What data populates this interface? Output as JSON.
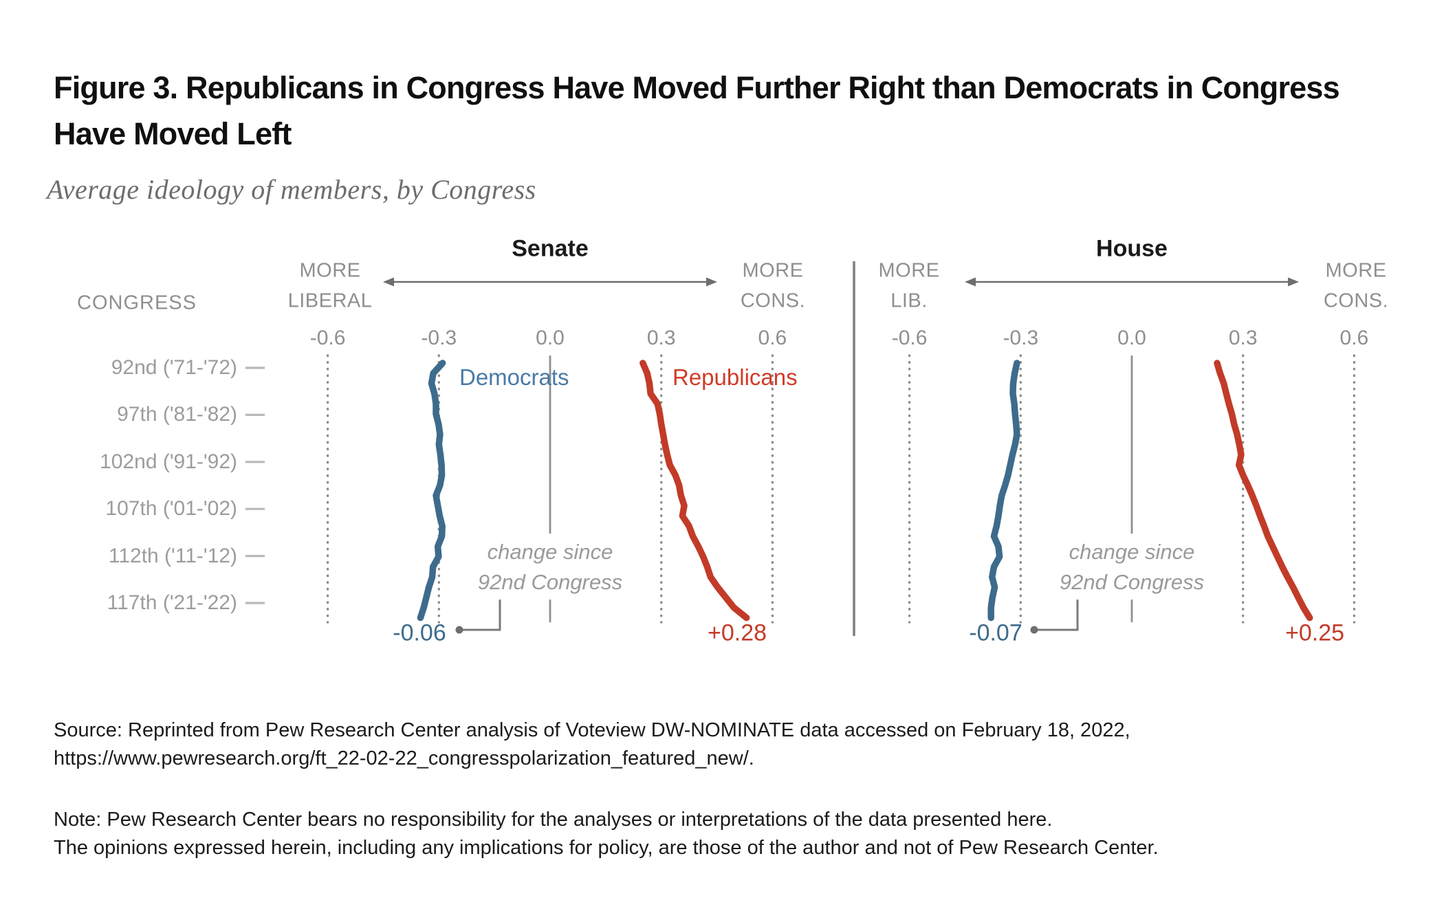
{
  "figure": {
    "title": "Figure 3. Republicans in Congress Have Moved Further Right than Democrats in Congress Have Moved Left",
    "subtitle": "Average ideology of members, by Congress"
  },
  "chart_data": {
    "type": "line",
    "description": "Average DW-NOMINATE ideology score of members by Congress, plotted vertically from the 92nd Congress (1971-72) at top to the 117th Congress (2021-22) at bottom; negative values = more liberal, positive = more conservative",
    "congress_range": [
      92,
      117
    ],
    "points_per_series": 26,
    "row_axis": {
      "header": "CONGRESS",
      "row_labels": [
        "92nd ('71-'72)",
        "97th ('81-'82)",
        "102nd ('91-'92)",
        "107th ('01-'02)",
        "112th ('11-'12)",
        "117th ('21-'22)"
      ]
    },
    "value_axis": {
      "tick_labels": [
        "-0.6",
        "-0.3",
        "0.0",
        "0.3",
        "0.6"
      ],
      "tick_values": [
        -0.6,
        -0.3,
        0,
        0.3,
        0.6
      ],
      "grid": "dotted vertical lines at ticks, solid line at 0.0"
    },
    "panels": [
      {
        "id": "senate",
        "title": "Senate",
        "left_endpoint_label": [
          "MORE",
          "LIBERAL"
        ],
        "right_endpoint_label": [
          "MORE",
          "CONS."
        ],
        "series": [
          {
            "name": "Democrats",
            "color": "#3e6b8c",
            "label_color": "#4a7aa5",
            "values": [
              -0.29,
              -0.315,
              -0.32,
              -0.312,
              -0.308,
              -0.308,
              -0.301,
              -0.297,
              -0.3,
              -0.296,
              -0.293,
              -0.292,
              -0.297,
              -0.308,
              -0.303,
              -0.298,
              -0.291,
              -0.292,
              -0.303,
              -0.301,
              -0.316,
              -0.318,
              -0.327,
              -0.334,
              -0.341,
              -0.35
            ]
          },
          {
            "name": "Republicans",
            "color": "#c23b28",
            "label_color": "#d03c27",
            "values": [
              0.25,
              0.262,
              0.268,
              0.271,
              0.29,
              0.296,
              0.3,
              0.305,
              0.31,
              0.316,
              0.323,
              0.338,
              0.348,
              0.353,
              0.362,
              0.357,
              0.375,
              0.385,
              0.4,
              0.413,
              0.424,
              0.433,
              0.452,
              0.474,
              0.496,
              0.53
            ]
          }
        ],
        "annotations": {
          "change_note_lines": [
            "change since",
            "92nd Congress"
          ],
          "democrat_change": "-0.06",
          "republican_change": "+0.28"
        }
      },
      {
        "id": "house",
        "title": "House",
        "left_endpoint_label": [
          "MORE",
          "LIB."
        ],
        "right_endpoint_label": [
          "MORE",
          "CONS."
        ],
        "series": [
          {
            "name": "Democrats",
            "color": "#3e6b8c",
            "label_color": "#4a7aa5",
            "values": [
              -0.31,
              -0.316,
              -0.32,
              -0.321,
              -0.317,
              -0.315,
              -0.312,
              -0.31,
              -0.315,
              -0.322,
              -0.328,
              -0.334,
              -0.342,
              -0.351,
              -0.356,
              -0.36,
              -0.365,
              -0.372,
              -0.36,
              -0.357,
              -0.372,
              -0.377,
              -0.37,
              -0.376,
              -0.38,
              -0.38
            ]
          },
          {
            "name": "Republicans",
            "color": "#c23b28",
            "label_color": "#d03c27",
            "values": [
              0.23,
              0.238,
              0.248,
              0.255,
              0.262,
              0.27,
              0.276,
              0.284,
              0.29,
              0.295,
              0.289,
              0.3,
              0.313,
              0.325,
              0.336,
              0.346,
              0.357,
              0.367,
              0.38,
              0.393,
              0.406,
              0.42,
              0.435,
              0.449,
              0.463,
              0.48
            ]
          }
        ],
        "annotations": {
          "change_note_lines": [
            "change since",
            "92nd Congress"
          ],
          "democrat_change": "-0.07",
          "republican_change": "+0.25"
        }
      }
    ]
  },
  "footer": {
    "source_lines": [
      "Source: Reprinted from Pew Research Center analysis of Voteview DW-NOMINATE data accessed on February 18, 2022,",
      "https://www.pewresearch.org/ft_22-02-22_congresspolarization_featured_new/."
    ],
    "note_lines": [
      "Note: Pew Research Center bears no responsibility for the analyses or interpretations of the data presented here.",
      "The opinions expressed herein, including any implications for policy, are those of the author and not of Pew Research Center."
    ]
  },
  "colors": {
    "democrat_line": "#3e6b8c",
    "republican_line": "#c23b28",
    "axis_gray": "#8f8f8f",
    "row_gray": "#9c9c9c",
    "annotation_gray": "#9a9a9a",
    "divider_gray": "#7f7f7f"
  }
}
